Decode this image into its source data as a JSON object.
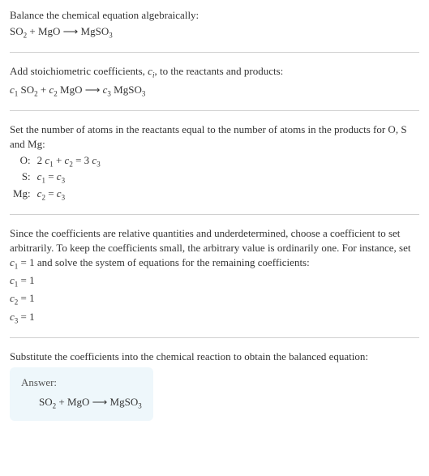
{
  "intro": {
    "line1": "Balance the chemical equation algebraically:",
    "eq_lhs1": "SO",
    "eq_lhs1_sub": "2",
    "eq_plus": " + MgO ",
    "eq_arrow": "⟶",
    "eq_rhs": " MgSO",
    "eq_rhs_sub": "3"
  },
  "step_coeffs": {
    "text_a": "Add stoichiometric coefficients, ",
    "ci": "c",
    "ci_sub": "i",
    "text_b": ", to the reactants and products:",
    "c1": "c",
    "c1_sub": "1",
    "so": " SO",
    "so_sub": "2",
    "plus": " + ",
    "c2": "c",
    "c2_sub": "2",
    "mgo": " MgO ",
    "arrow": "⟶ ",
    "c3": "c",
    "c3_sub": "3",
    "mgso": " MgSO",
    "mgso_sub": "3"
  },
  "step_atoms": {
    "text": "Set the number of atoms in the reactants equal to the number of atoms in the products for O, S and Mg:",
    "rows": {
      "o_label": "O:",
      "o_eq_a": "2 ",
      "o_eq_c1": "c",
      "o_eq_c1s": "1",
      "o_eq_b": " + ",
      "o_eq_c2": "c",
      "o_eq_c2s": "2",
      "o_eq_c": " = 3 ",
      "o_eq_c3": "c",
      "o_eq_c3s": "3",
      "s_label": "S:",
      "s_eq_c1": "c",
      "s_eq_c1s": "1",
      "s_eq_mid": " = ",
      "s_eq_c3": "c",
      "s_eq_c3s": "3",
      "mg_label": "Mg:",
      "mg_eq_c2": "c",
      "mg_eq_c2s": "2",
      "mg_eq_mid": " = ",
      "mg_eq_c3": "c",
      "mg_eq_c3s": "3"
    }
  },
  "step_arbitrary": {
    "text_a": "Since the coefficients are relative quantities and underdetermined, choose a coefficient to set arbitrarily. To keep the coefficients small, the arbitrary value is ordinarily one. For instance, set ",
    "c1": "c",
    "c1_sub": "1",
    "text_b": " = 1 and solve the system of equations for the remaining coefficients:",
    "r1a": "c",
    "r1s": "1",
    "r1b": " = 1",
    "r2a": "c",
    "r2s": "2",
    "r2b": " = 1",
    "r3a": "c",
    "r3s": "3",
    "r3b": " = 1"
  },
  "step_sub": {
    "text": "Substitute the coefficients into the chemical reaction to obtain the balanced equation:"
  },
  "answer": {
    "label": "Answer:",
    "lhs1": "SO",
    "lhs1_sub": "2",
    "plus": " + MgO ",
    "arrow": "⟶",
    "rhs": " MgSO",
    "rhs_sub": "3"
  }
}
